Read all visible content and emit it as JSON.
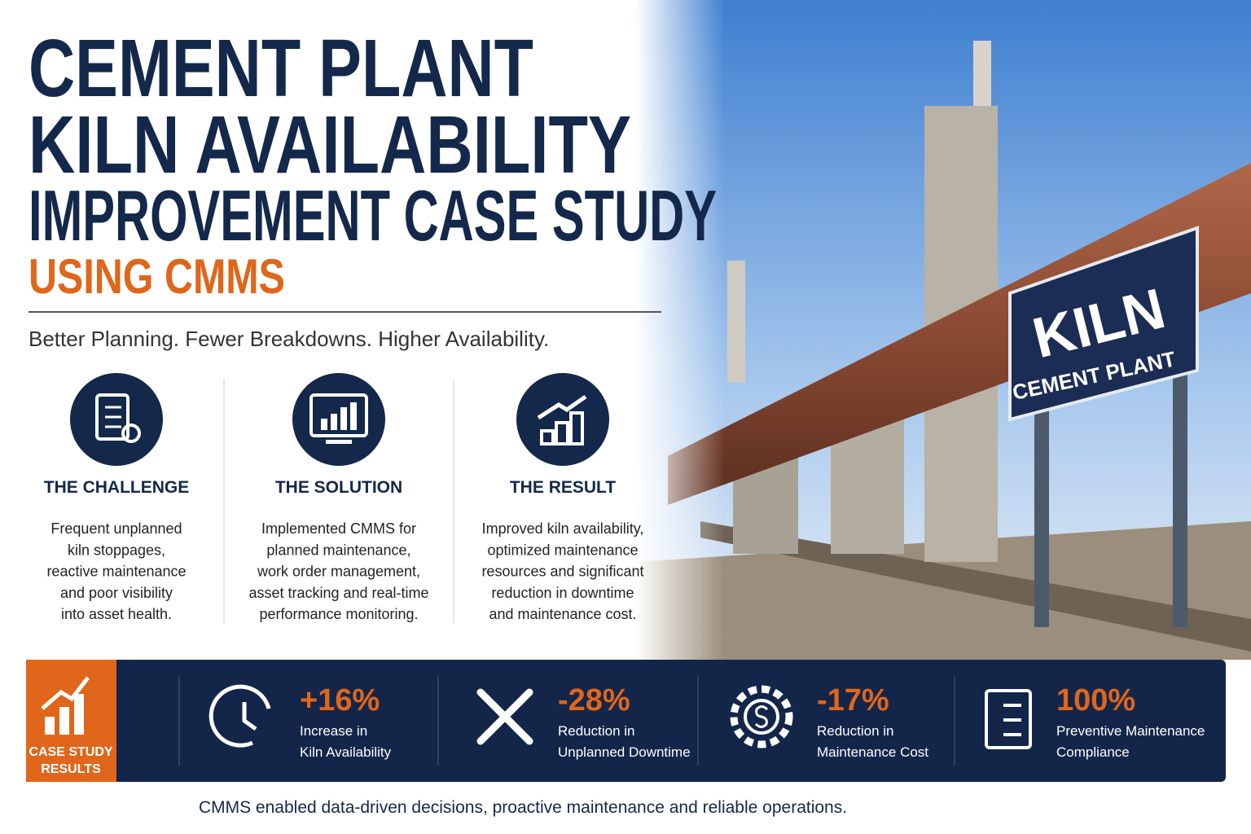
{
  "header": {
    "title_lines": [
      "CEMENT PLANT",
      "KILN AVAILABILITY",
      "IMPROVEMENT CASE STUDY"
    ],
    "subtitle": "USING CMMS",
    "tagline": "Better Planning. Fewer Breakdowns. Higher Availability."
  },
  "columns": [
    {
      "heading": "THE CHALLENGE",
      "lines": [
        "Frequent unplanned",
        "kiln stoppages,",
        "reactive maintenance",
        "and poor visibility",
        "into asset health."
      ]
    },
    {
      "heading": "THE SOLUTION",
      "lines": [
        "Implemented CMMS for",
        "planned maintenance,",
        "work order management,",
        "asset tracking and real-time",
        "performance monitoring."
      ]
    },
    {
      "heading": "THE RESULT",
      "lines": [
        "Improved kiln availability,",
        "optimized maintenance",
        "resources and significant",
        "reduction in downtime",
        "and maintenance cost."
      ]
    }
  ],
  "results": {
    "label_lines": [
      "CASE STUDY",
      "RESULTS"
    ],
    "stats": [
      {
        "value": "+16%",
        "lines": [
          "Increase in",
          "Kiln Availability"
        ]
      },
      {
        "value": "-28%",
        "lines": [
          "Reduction in",
          "Unplanned Downtime"
        ]
      },
      {
        "value": "-17%",
        "lines": [
          "Reduction in",
          "Maintenance Cost"
        ]
      },
      {
        "value": "100%",
        "lines": [
          "Preventive Maintenance",
          "Compliance"
        ]
      }
    ]
  },
  "photo": {
    "sign_title": "KILN",
    "sign_subtitle": "CEMENT PLANT"
  },
  "footer": "CMMS enabled data-driven decisions, proactive maintenance and reliable operations."
}
